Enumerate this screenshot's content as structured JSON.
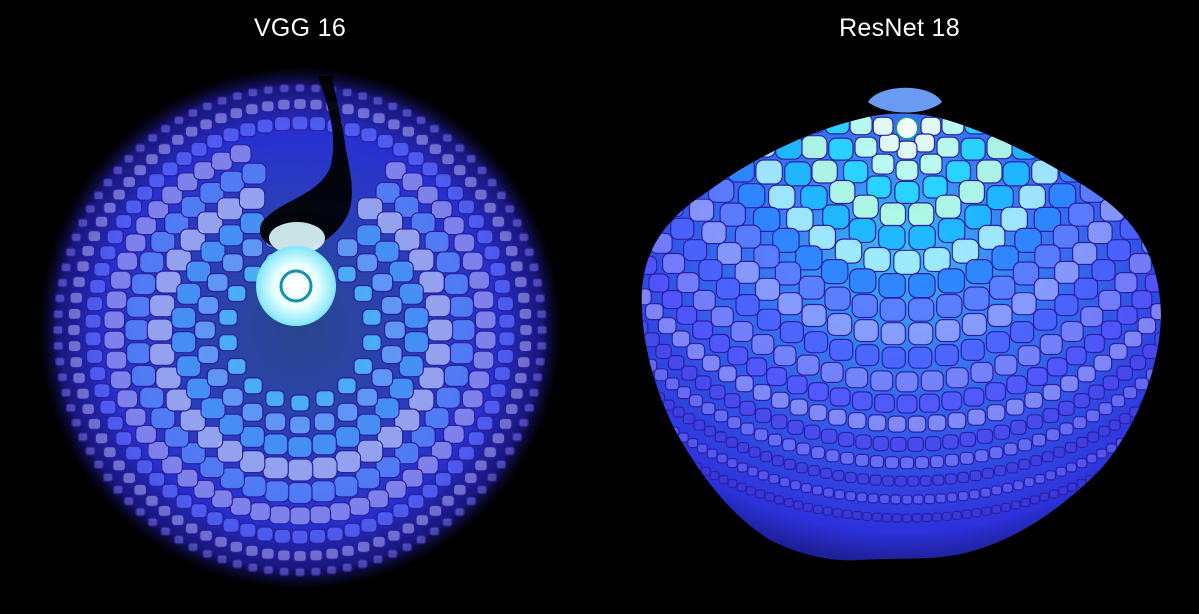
{
  "panels": [
    {
      "title": "VGG 16"
    },
    {
      "title": "ResNet 18"
    }
  ],
  "colors": {
    "background": "#000000",
    "outer_blue": "#2d3cff",
    "mid_blue": "#3f7dff",
    "pale_lavender": "#b9b6ff",
    "cyan": "#19d8ff",
    "mint": "#c8ffe6",
    "white_glow": "#f2ffff"
  }
}
